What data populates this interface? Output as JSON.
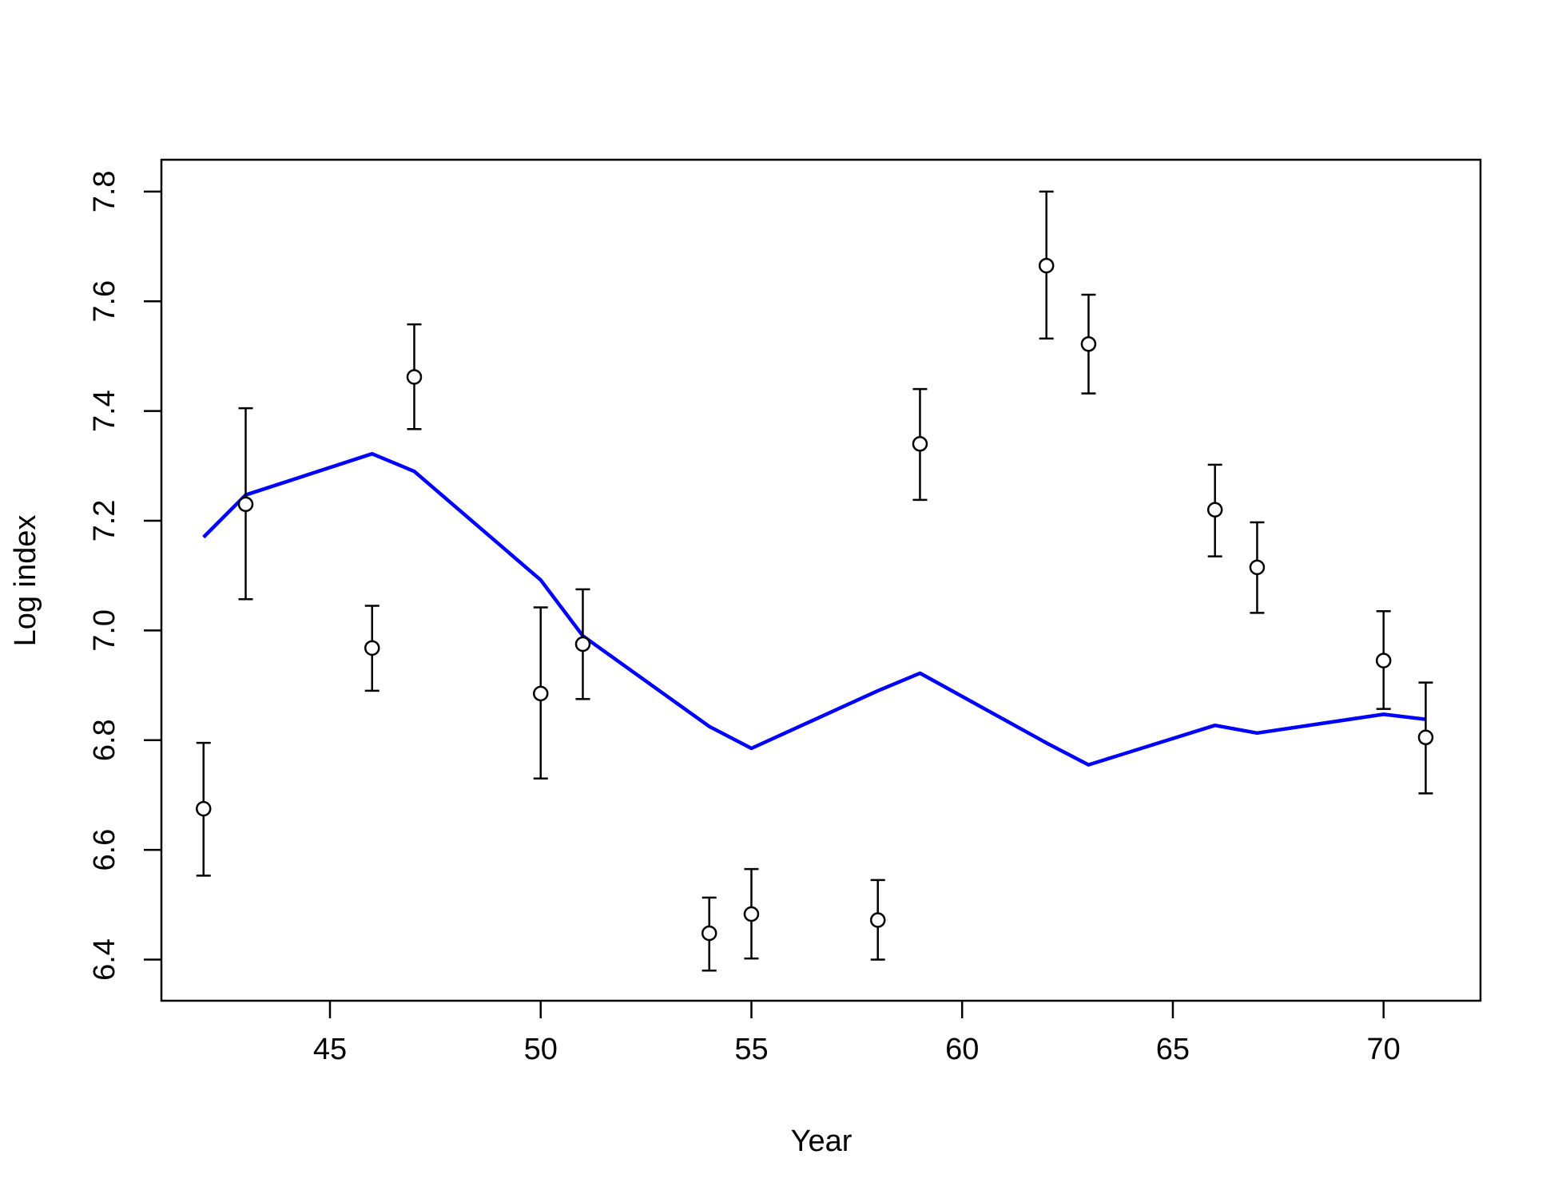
{
  "chart_data": {
    "type": "scatter",
    "xlabel": "Year",
    "ylabel": "Log index",
    "xlim": [
      41.0,
      72.3
    ],
    "ylim": [
      6.325,
      7.858
    ],
    "xticks": [
      45,
      50,
      55,
      60,
      65,
      70
    ],
    "yticks": [
      6.4,
      6.6,
      6.8,
      7.0,
      7.2,
      7.4,
      7.6,
      7.8
    ],
    "grid": false,
    "colors": {
      "points": "#000000",
      "error_bars": "#000000",
      "line": "#0000ff"
    },
    "series": [
      {
        "type": "scatter-errorbar",
        "points": [
          {
            "x": 42,
            "y": 6.675,
            "lo": 6.553,
            "hi": 6.795
          },
          {
            "x": 43,
            "y": 7.23,
            "lo": 7.057,
            "hi": 7.405
          },
          {
            "x": 46,
            "y": 6.968,
            "lo": 6.89,
            "hi": 7.045
          },
          {
            "x": 47,
            "y": 7.462,
            "lo": 7.367,
            "hi": 7.558
          },
          {
            "x": 50,
            "y": 6.885,
            "lo": 6.73,
            "hi": 7.042
          },
          {
            "x": 51,
            "y": 6.975,
            "lo": 6.875,
            "hi": 7.075
          },
          {
            "x": 54,
            "y": 6.448,
            "lo": 6.38,
            "hi": 6.513
          },
          {
            "x": 55,
            "y": 6.483,
            "lo": 6.402,
            "hi": 6.565
          },
          {
            "x": 58,
            "y": 6.472,
            "lo": 6.4,
            "hi": 6.545
          },
          {
            "x": 59,
            "y": 7.34,
            "lo": 7.238,
            "hi": 7.44
          },
          {
            "x": 62,
            "y": 7.665,
            "lo": 7.532,
            "hi": 7.8
          },
          {
            "x": 63,
            "y": 7.522,
            "lo": 7.432,
            "hi": 7.612
          },
          {
            "x": 66,
            "y": 7.22,
            "lo": 7.135,
            "hi": 7.302
          },
          {
            "x": 67,
            "y": 7.115,
            "lo": 7.032,
            "hi": 7.197
          },
          {
            "x": 70,
            "y": 6.945,
            "lo": 6.857,
            "hi": 7.035
          },
          {
            "x": 71,
            "y": 6.805,
            "lo": 6.703,
            "hi": 6.905
          }
        ]
      },
      {
        "type": "line",
        "x": [
          42,
          43,
          46,
          47,
          50,
          51,
          54,
          55,
          58,
          59,
          62,
          63,
          66,
          67,
          70,
          71
        ],
        "y": [
          7.17,
          7.247,
          7.322,
          7.29,
          7.092,
          6.99,
          6.825,
          6.785,
          6.89,
          6.922,
          6.795,
          6.755,
          6.827,
          6.813,
          6.847,
          6.838
        ]
      }
    ]
  }
}
